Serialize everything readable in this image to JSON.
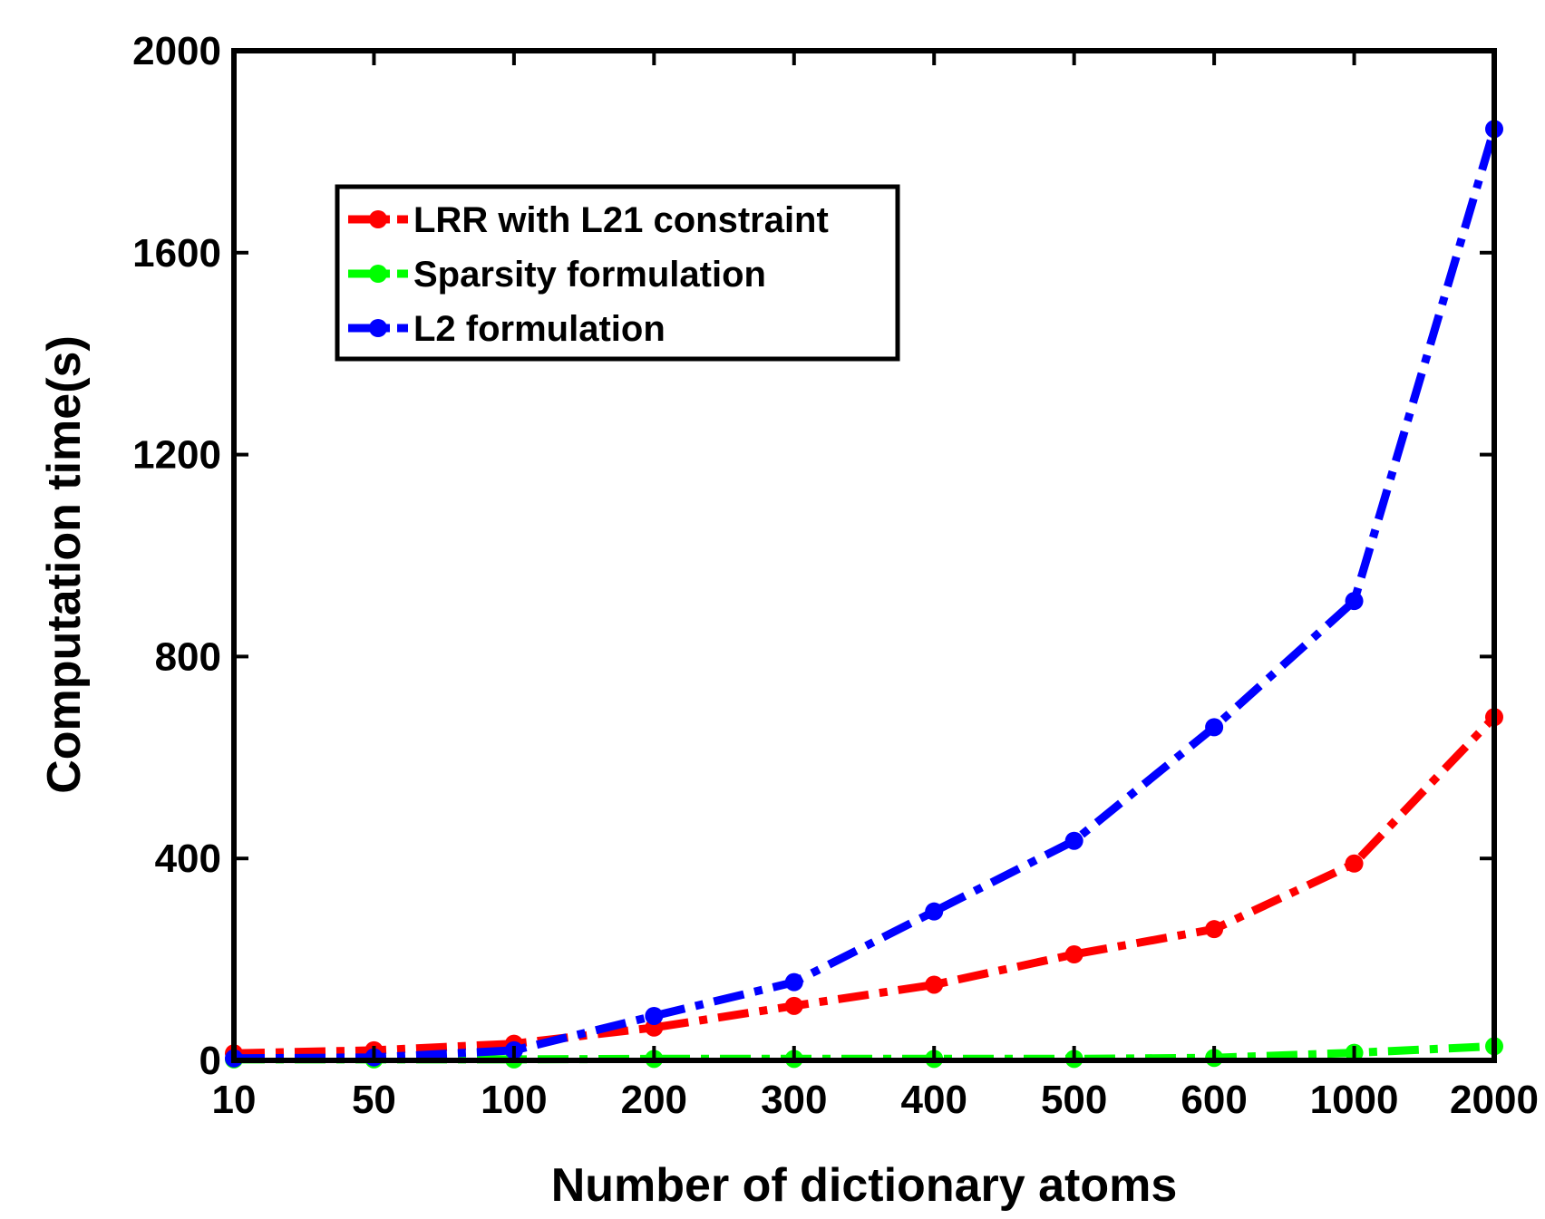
{
  "chart_data": {
    "type": "line",
    "title": "",
    "xlabel": "Number of dictionary atoms",
    "ylabel": "Computation time(s)",
    "categories": [
      "10",
      "50",
      "100",
      "200",
      "300",
      "400",
      "500",
      "600",
      "1000",
      "2000"
    ],
    "ylim": [
      0,
      2000
    ],
    "yticks": [
      0,
      400,
      800,
      1200,
      1600,
      2000
    ],
    "ytick_labels": [
      "0",
      "400",
      "800",
      "1200",
      "1600",
      "2000"
    ],
    "grid": false,
    "legend_position": "upper-left",
    "series": [
      {
        "name": "LRR with L21 constraint",
        "color": "#ff0000",
        "values": [
          14,
          20,
          33,
          65,
          108,
          150,
          210,
          260,
          390,
          680
        ]
      },
      {
        "name": "Sparsity formulation",
        "color": "#00ff00",
        "values": [
          2,
          2,
          2,
          3,
          3,
          3,
          3,
          5,
          15,
          28
        ]
      },
      {
        "name": "L2 formulation",
        "color": "#0000ff",
        "values": [
          4,
          6,
          20,
          88,
          155,
          295,
          435,
          660,
          910,
          1845
        ]
      }
    ]
  }
}
